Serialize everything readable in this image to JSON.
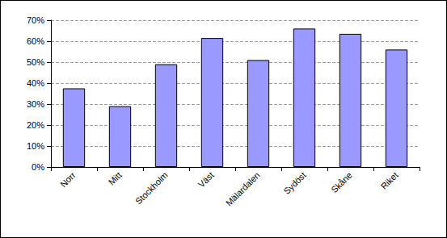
{
  "chart_data": {
    "type": "bar",
    "categories": [
      "Norr",
      "Mitt",
      "Stockholm",
      "Väst",
      "Mälardalen",
      "Sydöst",
      "Skåne",
      "Riket"
    ],
    "values": [
      37.5,
      29,
      49,
      61.5,
      51,
      66,
      63.5,
      56
    ],
    "color": "#9999ff",
    "ylim": [
      0,
      70
    ],
    "yticks": [
      {
        "value": 0,
        "label": "0%"
      },
      {
        "value": 10,
        "label": "10%"
      },
      {
        "value": 20,
        "label": "20%"
      },
      {
        "value": 30,
        "label": "30%"
      },
      {
        "value": 40,
        "label": "40%"
      },
      {
        "value": 50,
        "label": "50%"
      },
      {
        "value": 60,
        "label": "60%"
      },
      {
        "value": 70,
        "label": "70%"
      }
    ],
    "grid": true
  }
}
